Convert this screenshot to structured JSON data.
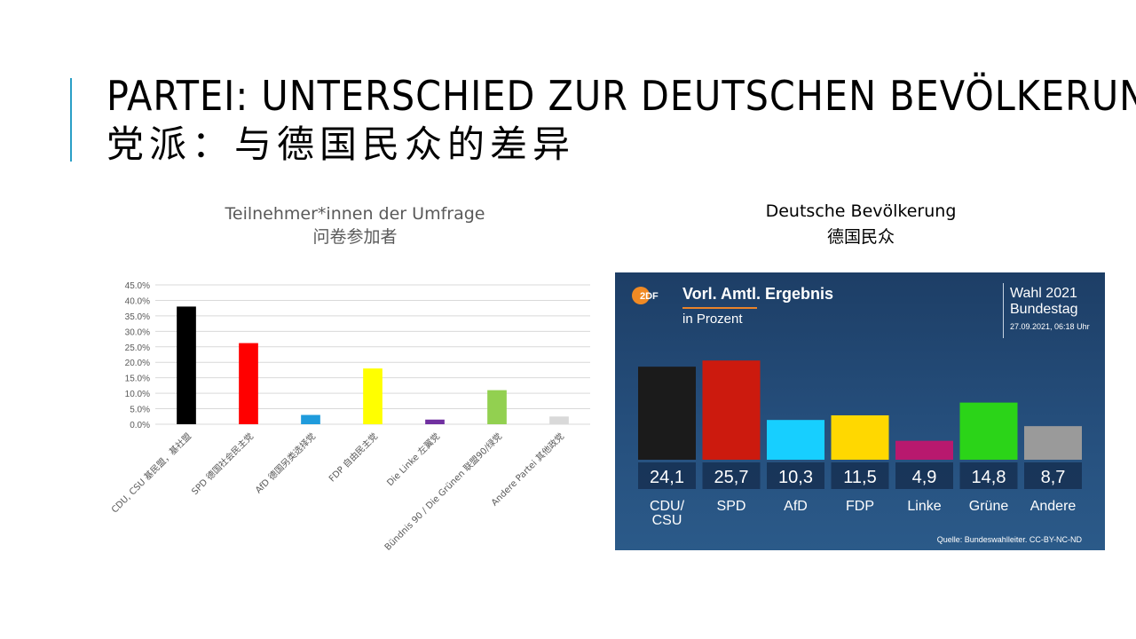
{
  "slide": {
    "title_de": "PARTEI: UNTERSCHIED ZUR DEUTSCHEN BEVÖLKERUNG",
    "title_zh": "党派：与德国民众的差异"
  },
  "left_chart_caption": {
    "de": "Teilnehmer*innen der Umfrage",
    "zh": "问卷参加者"
  },
  "right_chart_caption": {
    "de": "Deutsche Bevölkerung",
    "zh": "德国民众"
  },
  "zdf": {
    "logo_text": "2DF",
    "title": "Vorl. Amtl. Ergebnis",
    "subtitle": "in Prozent",
    "election_line1": "Wahl 2021",
    "election_line2": "Bundestag",
    "timestamp": "27.09.2021, 06:18 Uhr",
    "source": "Quelle: Bundeswahlleiter. CC-BY-NC-ND"
  },
  "chart_data": [
    {
      "type": "bar",
      "title": "Teilnehmer*innen der Umfrage",
      "categories": [
        "CDU, CSU 基民盟，基社盟",
        "SPD 德国社会民主党",
        "AfD 德国另类选择党",
        "FDP 自由民主党",
        "Die Linke 左翼党",
        "Bündnis 90 / Die Grünen 联盟90/绿党",
        "Andere Partei 其他政党"
      ],
      "values": [
        0.38,
        0.262,
        0.03,
        0.18,
        0.015,
        0.11,
        0.025
      ],
      "ylim": [
        0,
        0.45
      ],
      "yticks": [
        "0.0%",
        "5.0%",
        "10.0%",
        "15.0%",
        "20.0%",
        "25.0%",
        "30.0%",
        "35.0%",
        "40.0%",
        "45.0%"
      ],
      "colors": [
        "#000000",
        "#ff0000",
        "#1f9bdc",
        "#ffff00",
        "#7030a0",
        "#92d050",
        "#d9d9d9"
      ],
      "grid": true
    },
    {
      "type": "bar",
      "title": "Vorl. Amtl. Ergebnis",
      "categories": [
        "CDU/ CSU",
        "SPD",
        "AfD",
        "FDP",
        "Linke",
        "Grüne",
        "Andere"
      ],
      "values": [
        24.1,
        25.7,
        10.3,
        11.5,
        4.9,
        14.8,
        8.7
      ],
      "value_labels": [
        "24,1",
        "25,7",
        "10,3",
        "11,5",
        "4,9",
        "14,8",
        "8,7"
      ],
      "colors": [
        "#1b1b1b",
        "#cc1a0e",
        "#17cfff",
        "#ffd800",
        "#b8196e",
        "#2bd418",
        "#9a9a9a"
      ]
    }
  ]
}
